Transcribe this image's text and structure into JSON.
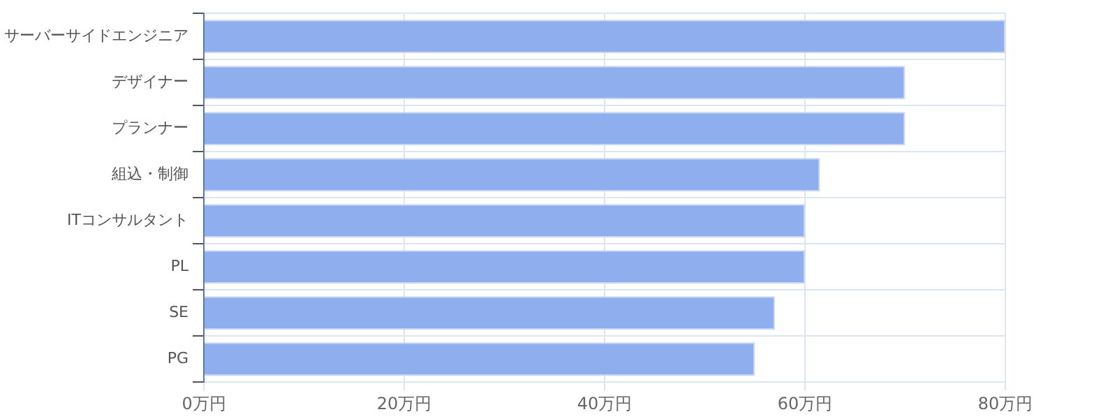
{
  "chart_data": {
    "type": "bar",
    "orientation": "horizontal",
    "categories": [
      "サーバーサイドエンジニア",
      "デザイナー",
      "プランナー",
      "組込・制御",
      "ITコンサルタント",
      "PL",
      "SE",
      "PG"
    ],
    "values": [
      80,
      70,
      70,
      61.5,
      60,
      60,
      57,
      55
    ],
    "color": "#8eaeed",
    "xlim": [
      0,
      80
    ],
    "xticks": [
      {
        "value": 0,
        "label": "0万円"
      },
      {
        "value": 20,
        "label": "20万円"
      },
      {
        "value": 40,
        "label": "40万円"
      },
      {
        "value": 60,
        "label": "60万円"
      },
      {
        "value": 80,
        "label": "80万円"
      }
    ],
    "grid": true
  }
}
